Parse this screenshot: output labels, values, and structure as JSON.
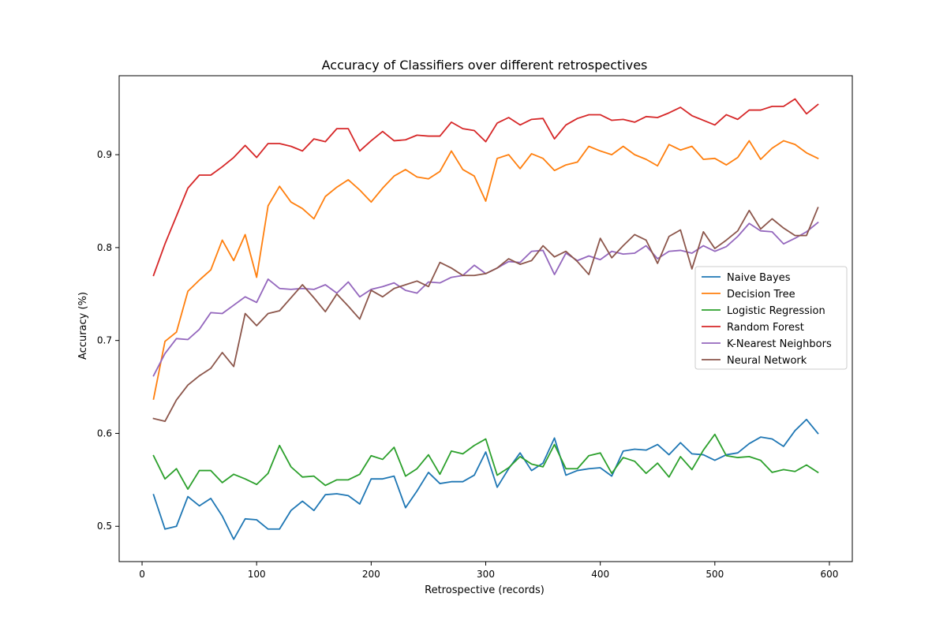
{
  "chart_data": {
    "type": "line",
    "title": "Accuracy of Classifiers over different retrospectives",
    "xlabel": "Retrospective (records)",
    "ylabel": "Accuracy (%)",
    "xlim": [
      -20,
      620
    ],
    "ylim": [
      0.462,
      0.985
    ],
    "xticks": [
      0,
      100,
      200,
      300,
      400,
      500,
      600
    ],
    "yticks": [
      0.5,
      0.6,
      0.7,
      0.8,
      0.9
    ],
    "grid": false,
    "legend_position": "center-right",
    "x": [
      10,
      20,
      30,
      40,
      50,
      60,
      70,
      80,
      90,
      100,
      110,
      120,
      130,
      140,
      150,
      160,
      170,
      180,
      190,
      200,
      210,
      220,
      230,
      240,
      250,
      260,
      270,
      280,
      290,
      300,
      310,
      320,
      330,
      340,
      350,
      360,
      370,
      380,
      390,
      400,
      410,
      420,
      430,
      440,
      450,
      460,
      470,
      480,
      490,
      500,
      510,
      520,
      530,
      540,
      550,
      560,
      570,
      580,
      590
    ],
    "series": [
      {
        "name": "Naive Bayes",
        "color": "#1f77b4",
        "values": [
          0.534,
          0.497,
          0.5,
          0.532,
          0.522,
          0.53,
          0.511,
          0.486,
          0.508,
          0.507,
          0.497,
          0.497,
          0.517,
          0.527,
          0.517,
          0.534,
          0.535,
          0.533,
          0.524,
          0.551,
          0.551,
          0.554,
          0.52,
          0.538,
          0.558,
          0.546,
          0.548,
          0.548,
          0.555,
          0.58,
          0.542,
          0.562,
          0.579,
          0.56,
          0.568,
          0.595,
          0.555,
          0.56,
          0.562,
          0.563,
          0.554,
          0.581,
          0.583,
          0.582,
          0.588,
          0.577,
          0.59,
          0.578,
          0.577,
          0.571,
          0.577,
          0.579,
          0.589,
          0.596,
          0.594,
          0.586,
          0.603,
          0.615,
          0.6
        ]
      },
      {
        "name": "Decision Tree",
        "color": "#ff7f0e",
        "values": [
          0.637,
          0.699,
          0.709,
          0.753,
          0.765,
          0.776,
          0.808,
          0.786,
          0.814,
          0.768,
          0.845,
          0.866,
          0.849,
          0.842,
          0.831,
          0.855,
          0.865,
          0.873,
          0.862,
          0.849,
          0.864,
          0.877,
          0.884,
          0.876,
          0.874,
          0.882,
          0.904,
          0.884,
          0.877,
          0.85,
          0.896,
          0.9,
          0.885,
          0.901,
          0.896,
          0.883,
          0.889,
          0.892,
          0.909,
          0.904,
          0.9,
          0.909,
          0.9,
          0.895,
          0.888,
          0.911,
          0.905,
          0.909,
          0.895,
          0.896,
          0.889,
          0.897,
          0.915,
          0.895,
          0.907,
          0.915,
          0.911,
          0.902,
          0.896
        ]
      },
      {
        "name": "Logistic Regression",
        "color": "#2ca02c",
        "values": [
          0.576,
          0.551,
          0.562,
          0.54,
          0.56,
          0.56,
          0.547,
          0.556,
          0.551,
          0.545,
          0.557,
          0.587,
          0.564,
          0.553,
          0.554,
          0.544,
          0.55,
          0.55,
          0.556,
          0.576,
          0.572,
          0.585,
          0.554,
          0.562,
          0.577,
          0.556,
          0.581,
          0.578,
          0.587,
          0.594,
          0.555,
          0.563,
          0.575,
          0.567,
          0.564,
          0.588,
          0.562,
          0.562,
          0.576,
          0.579,
          0.557,
          0.574,
          0.57,
          0.557,
          0.568,
          0.553,
          0.575,
          0.561,
          0.582,
          0.599,
          0.576,
          0.574,
          0.575,
          0.571,
          0.558,
          0.561,
          0.559,
          0.566,
          0.558
        ]
      },
      {
        "name": "Random Forest",
        "color": "#d62728",
        "values": [
          0.77,
          0.804,
          0.834,
          0.864,
          0.878,
          0.878,
          0.887,
          0.897,
          0.91,
          0.897,
          0.912,
          0.912,
          0.909,
          0.904,
          0.917,
          0.914,
          0.928,
          0.928,
          0.904,
          0.915,
          0.925,
          0.915,
          0.916,
          0.921,
          0.92,
          0.92,
          0.935,
          0.928,
          0.926,
          0.914,
          0.934,
          0.94,
          0.932,
          0.938,
          0.939,
          0.917,
          0.932,
          0.939,
          0.943,
          0.943,
          0.937,
          0.938,
          0.935,
          0.941,
          0.94,
          0.945,
          0.951,
          0.942,
          0.937,
          0.932,
          0.943,
          0.938,
          0.948,
          0.948,
          0.952,
          0.952,
          0.96,
          0.944,
          0.954
        ]
      },
      {
        "name": "K-Nearest Neighbors",
        "color": "#9467bd",
        "values": [
          0.662,
          0.686,
          0.702,
          0.701,
          0.712,
          0.73,
          0.729,
          0.738,
          0.747,
          0.741,
          0.766,
          0.756,
          0.755,
          0.756,
          0.755,
          0.76,
          0.751,
          0.763,
          0.747,
          0.755,
          0.758,
          0.762,
          0.754,
          0.751,
          0.763,
          0.762,
          0.768,
          0.77,
          0.781,
          0.772,
          0.778,
          0.785,
          0.784,
          0.796,
          0.797,
          0.771,
          0.794,
          0.786,
          0.791,
          0.787,
          0.796,
          0.793,
          0.794,
          0.802,
          0.788,
          0.796,
          0.797,
          0.794,
          0.802,
          0.796,
          0.801,
          0.812,
          0.826,
          0.818,
          0.817,
          0.804,
          0.81,
          0.817,
          0.827
        ]
      },
      {
        "name": "Neural Network",
        "color": "#8c564b",
        "values": [
          0.616,
          0.613,
          0.636,
          0.652,
          0.662,
          0.67,
          0.687,
          0.672,
          0.729,
          0.716,
          0.729,
          0.732,
          0.746,
          0.76,
          0.746,
          0.731,
          0.75,
          0.737,
          0.723,
          0.754,
          0.747,
          0.756,
          0.76,
          0.764,
          0.758,
          0.784,
          0.778,
          0.77,
          0.77,
          0.772,
          0.778,
          0.788,
          0.782,
          0.786,
          0.802,
          0.79,
          0.796,
          0.785,
          0.771,
          0.81,
          0.789,
          0.802,
          0.814,
          0.808,
          0.783,
          0.812,
          0.819,
          0.777,
          0.817,
          0.799,
          0.808,
          0.818,
          0.84,
          0.82,
          0.831,
          0.821,
          0.813,
          0.813,
          0.843
        ]
      }
    ]
  }
}
